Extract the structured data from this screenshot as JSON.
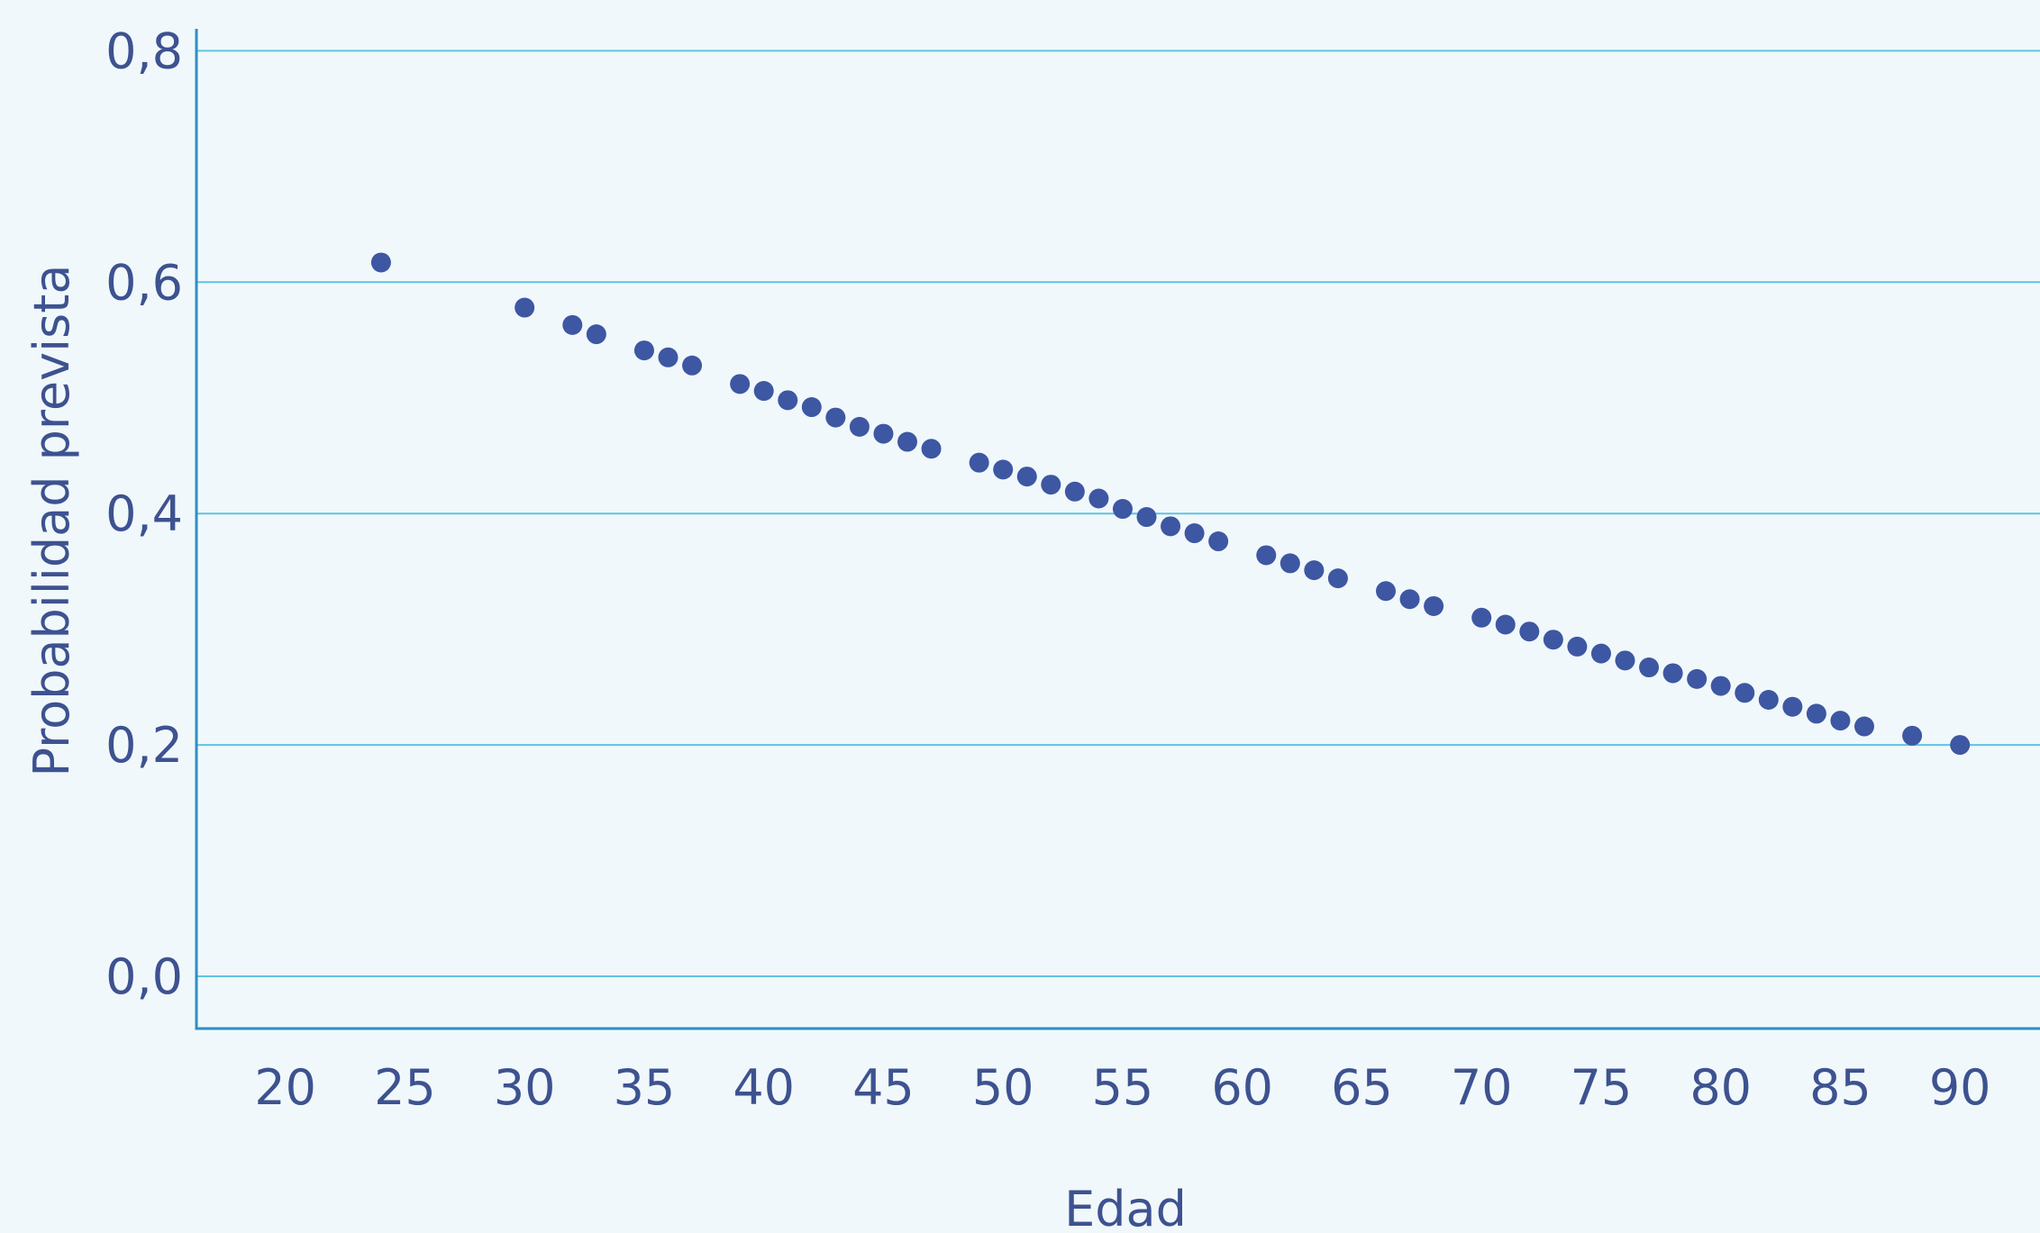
{
  "chart_data": {
    "type": "scatter",
    "xlabel": "Edad",
    "ylabel": "Probabilidad prevista",
    "xlim": [
      16.3,
      93
    ],
    "ylim": [
      -0.045,
      0.815
    ],
    "x_ticks": [
      20,
      25,
      30,
      35,
      40,
      45,
      50,
      55,
      60,
      65,
      70,
      75,
      80,
      85,
      90
    ],
    "x_tick_labels": [
      "20",
      "25",
      "30",
      "35",
      "40",
      "45",
      "50",
      "55",
      "60",
      "65",
      "70",
      "75",
      "80",
      "85",
      "90"
    ],
    "y_ticks": [
      0.0,
      0.2,
      0.4,
      0.6,
      0.8
    ],
    "y_tick_labels": [
      "0,0",
      "0,2",
      "0,4",
      "0,6",
      "0,8"
    ],
    "grid": "horizontal",
    "colors": {
      "background": "#f1f8fb",
      "gridline": "#5fc3e4",
      "axis": "#2e8fc0",
      "point": "#3d57a3",
      "text": "#3d5290"
    },
    "x": [
      24,
      30,
      32,
      33,
      35,
      36,
      37,
      39,
      40,
      41,
      42,
      43,
      44,
      45,
      46,
      47,
      49,
      50,
      51,
      52,
      53,
      54,
      55,
      56,
      57,
      58,
      59,
      61,
      62,
      63,
      64,
      66,
      67,
      68,
      70,
      71,
      72,
      73,
      74,
      75,
      76,
      77,
      78,
      79,
      80,
      81,
      82,
      83,
      84,
      85,
      86,
      88,
      90
    ],
    "y": [
      0.617,
      0.578,
      0.563,
      0.555,
      0.541,
      0.535,
      0.528,
      0.512,
      0.506,
      0.498,
      0.492,
      0.483,
      0.475,
      0.469,
      0.462,
      0.456,
      0.444,
      0.438,
      0.432,
      0.425,
      0.419,
      0.413,
      0.404,
      0.397,
      0.389,
      0.383,
      0.376,
      0.364,
      0.357,
      0.351,
      0.344,
      0.333,
      0.326,
      0.32,
      0.31,
      0.304,
      0.298,
      0.291,
      0.285,
      0.279,
      0.273,
      0.267,
      0.262,
      0.257,
      0.251,
      0.245,
      0.239,
      0.233,
      0.227,
      0.221,
      0.216,
      0.208,
      0.2
    ]
  }
}
